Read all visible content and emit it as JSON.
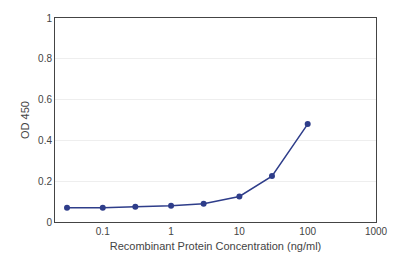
{
  "chart_data": {
    "type": "line",
    "xlabel": "Recombinant Protein Concentration (ng/ml)",
    "ylabel": "OD 450",
    "x": [
      0.03,
      0.1,
      0.3,
      1.0,
      3.0,
      10.0,
      30.0,
      100.0
    ],
    "values": [
      0.07,
      0.07,
      0.075,
      0.08,
      0.09,
      0.125,
      0.225,
      0.48
    ],
    "color": "#2e3d8a",
    "marker": "circle",
    "log": "x",
    "xlim": [
      0.02,
      1000
    ],
    "xticks": [
      0.1,
      1,
      10,
      100,
      1000
    ],
    "ylim": [
      0,
      1
    ],
    "yticks": [
      0,
      0.2,
      0.4,
      0.6,
      0.8,
      1
    ],
    "grid": "y"
  }
}
